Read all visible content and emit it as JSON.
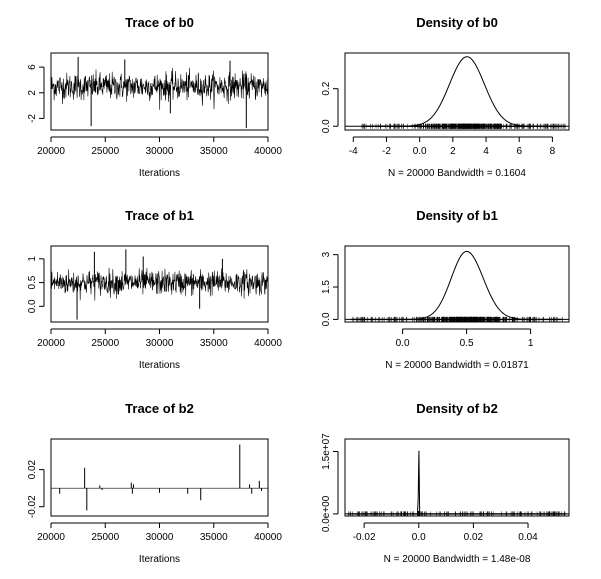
{
  "chart_data": [
    {
      "type": "line",
      "title": "Trace of b0",
      "xlabel": "Iterations",
      "ylabel": "",
      "xlim": [
        20000,
        40000
      ],
      "ylim": [
        -3.8,
        8.2
      ],
      "xticks": [
        20000,
        25000,
        30000,
        35000,
        40000
      ],
      "yticks": [
        -2,
        2,
        6
      ],
      "center": 3.0,
      "spread": 1.05,
      "spikes": [
        [
          22500,
          7.6
        ],
        [
          23700,
          -3.2
        ],
        [
          26800,
          7.2
        ],
        [
          31000,
          -1.2
        ],
        [
          36500,
          7.0
        ],
        [
          38000,
          -3.5
        ]
      ]
    },
    {
      "type": "line",
      "title": "Density of b0",
      "xlabel": "N = 20000   Bandwidth = 0.1604",
      "ylabel": "",
      "xlim": [
        -4.5,
        9.0
      ],
      "ylim": [
        -0.02,
        0.39
      ],
      "xticks": [
        -4,
        -2,
        0,
        2,
        4,
        6,
        8
      ],
      "yticks": [
        0.0,
        0.2
      ],
      "peak_x": 2.85,
      "peak_y": 0.37,
      "sd_left": 1.05,
      "sd_right": 1.05,
      "rug_range": [
        -3.5,
        8.8
      ]
    },
    {
      "type": "line",
      "title": "Trace of b1",
      "xlabel": "Iterations",
      "ylabel": "",
      "xlim": [
        20000,
        40000
      ],
      "ylim": [
        -0.33,
        1.27
      ],
      "xticks": [
        20000,
        25000,
        30000,
        35000,
        40000
      ],
      "yticks": [
        0.0,
        0.5,
        1.0
      ],
      "center": 0.5,
      "spread": 0.13,
      "spikes": [
        [
          22400,
          -0.28
        ],
        [
          24000,
          1.15
        ],
        [
          26900,
          1.2
        ],
        [
          28500,
          1.05
        ],
        [
          33700,
          -0.05
        ],
        [
          35800,
          1.0
        ]
      ]
    },
    {
      "type": "line",
      "title": "Density of b1",
      "xlabel": "N = 20000   Bandwidth = 0.01871",
      "ylabel": "",
      "xlim": [
        -0.45,
        1.3
      ],
      "ylim": [
        -0.12,
        3.4
      ],
      "xticks": [
        0.0,
        0.5,
        1.0
      ],
      "yticks": [
        0.0,
        1.5,
        3.0
      ],
      "peak_x": 0.5,
      "peak_y": 3.15,
      "sd_left": 0.12,
      "sd_right": 0.13,
      "rug_range": [
        -0.4,
        1.25
      ]
    },
    {
      "type": "line",
      "title": "Trace of b2",
      "xlabel": "Iterations",
      "ylabel": "",
      "xlim": [
        20000,
        40000
      ],
      "ylim": [
        -0.03,
        0.053
      ],
      "xticks": [
        20000,
        25000,
        30000,
        35000,
        40000
      ],
      "yticks": [
        -0.02,
        0.02
      ],
      "center": 0.0,
      "spread": 0.0,
      "spikes": [
        [
          20800,
          -0.006
        ],
        [
          23100,
          0.022
        ],
        [
          23300,
          -0.024
        ],
        [
          24500,
          0.003
        ],
        [
          24700,
          -0.002
        ],
        [
          27400,
          0.006
        ],
        [
          27500,
          -0.006
        ],
        [
          27600,
          0.004
        ],
        [
          30000,
          -0.005
        ],
        [
          32600,
          -0.006
        ],
        [
          33800,
          -0.013
        ],
        [
          37400,
          0.047
        ],
        [
          38300,
          0.004
        ],
        [
          38500,
          -0.006
        ],
        [
          39200,
          0.008
        ],
        [
          39400,
          -0.003
        ]
      ]
    },
    {
      "type": "line",
      "title": "Density of b2",
      "xlabel": "N = 20000   Bandwidth = 1.48e-08",
      "ylabel": "",
      "xlim": [
        -0.027,
        0.055
      ],
      "ylim": [
        -500000,
        18000000
      ],
      "xticks": [
        -0.02,
        0.0,
        0.02,
        0.04
      ],
      "yticks": [
        0,
        15000000
      ],
      "ytick_labels": [
        "0.0e+00",
        "1.5e+07"
      ],
      "peak_x": 0.0,
      "peak_y": 17200000,
      "sd_left": 0.00012,
      "sd_right": 0.00012,
      "rug_range": [
        -0.026,
        0.054
      ]
    }
  ]
}
